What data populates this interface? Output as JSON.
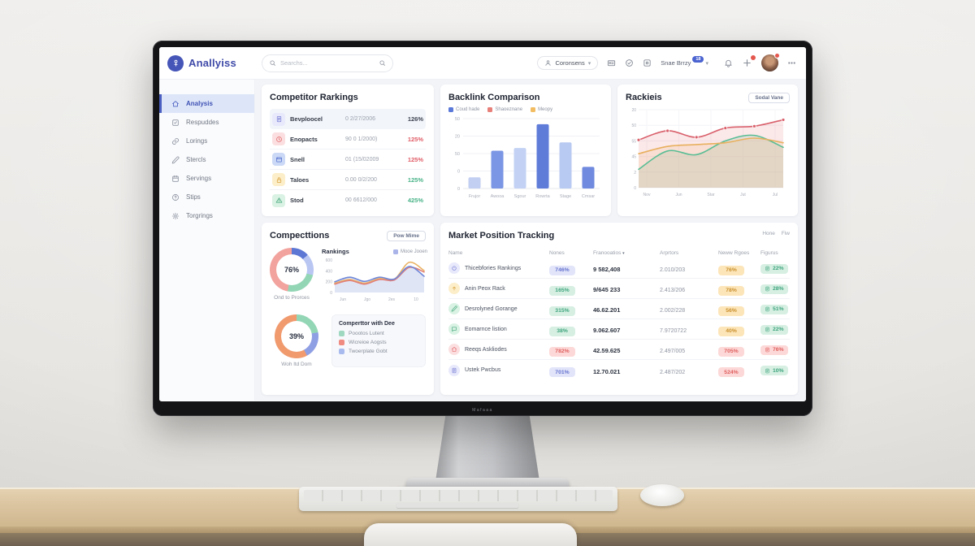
{
  "scene": {
    "monitor_brand": "Mafaaa"
  },
  "header": {
    "logo_text": "Anallyiss",
    "search_placeholder": "Searchs...",
    "consents_label": "Coronsens",
    "user_name": "Snae Brrzy",
    "user_badge": "18"
  },
  "sidebar": {
    "items": [
      {
        "label": "Analysis",
        "icon": "home",
        "active": true
      },
      {
        "label": "Respuddes",
        "icon": "check-square",
        "active": false
      },
      {
        "label": "Lorings",
        "icon": "link",
        "active": false
      },
      {
        "label": "Stercls",
        "icon": "pencil",
        "active": false
      },
      {
        "label": "Servings",
        "icon": "calendar",
        "active": false
      },
      {
        "label": "Stips",
        "icon": "help",
        "active": false
      },
      {
        "label": "Torgrings",
        "icon": "gear",
        "active": false
      }
    ]
  },
  "competitor_rankings": {
    "title": "Competitor Rarkings",
    "rows": [
      {
        "icon": "doc",
        "icon_color": "purple",
        "name": "Bevploocel",
        "value": "0 2/27/2006",
        "pct": "126%",
        "pct_color": "dark"
      },
      {
        "icon": "clock",
        "icon_color": "red",
        "name": "Enopacts",
        "value": "90 0 1/2000)",
        "pct": "125%",
        "pct_color": "red"
      },
      {
        "icon": "window",
        "icon_color": "blue",
        "name": "Snell",
        "value": "01 (15/02009",
        "pct": "125%",
        "pct_color": "red"
      },
      {
        "icon": "lock",
        "icon_color": "yellow",
        "name": "Taloes",
        "value": "0.00 0/2/200",
        "pct": "125%",
        "pct_color": "green"
      },
      {
        "icon": "alert",
        "icon_color": "green",
        "name": "Stod",
        "value": "00 6612/000",
        "pct": "425%",
        "pct_color": "green"
      }
    ]
  },
  "rackieis": {
    "button_label": "Sodal Vane"
  },
  "compecttions": {
    "title": "Compecttions",
    "button_label": "Pow Mime",
    "donut1": {
      "pct": "76%",
      "label": "Ond to Prorces",
      "segments": [
        {
          "color": "#5c77d4",
          "value": 13
        },
        {
          "color": "#b9c6f2",
          "value": 16
        },
        {
          "color": "#93d6b5",
          "value": 24
        },
        {
          "color": "#f2a39e",
          "value": 47
        }
      ]
    },
    "donut2": {
      "pct": "39%",
      "label": "Woh ltd Dom",
      "segments": [
        {
          "color": "#93d6b5",
          "value": 22
        },
        {
          "color": "#8f9fe3",
          "value": 20
        },
        {
          "color": "#f09a6e",
          "value": 58
        }
      ]
    },
    "legend_panel": {
      "title": "Comperttor with Dee",
      "items": [
        {
          "label": "Poootos Lutent",
          "color": "#9fd8c0"
        },
        {
          "label": "Wicreioe Aogsts",
          "color": "#ef8b81"
        },
        {
          "label": "Twoerplate Gobt",
          "color": "#a9bbee"
        }
      ]
    }
  },
  "market": {
    "title": "Market Position Tracking",
    "links": [
      "Hone",
      "Fiw"
    ],
    "columns": [
      {
        "label": "Name",
        "sortable": false
      },
      {
        "label": "Nones",
        "sortable": false
      },
      {
        "label": "Franooatios",
        "sortable": true
      },
      {
        "label": "Arprtors",
        "sortable": false
      },
      {
        "label": "Neww Rgoes",
        "sortable": false
      },
      {
        "label": "Figurus",
        "sortable": false
      }
    ],
    "rows": [
      {
        "icon": "power",
        "icon_color": "purple",
        "name": "Thicebfories Rankings",
        "nones": "746%",
        "nones_color": "purple",
        "franooatios": "9 582,408",
        "arprtors": "2.010/203",
        "neww": "76%",
        "neww_color": "orange",
        "figurus": "22%",
        "figurus_color": "green"
      },
      {
        "icon": "arrow-up",
        "icon_color": "yellow",
        "name": "Anin Peox Rack",
        "nones": "165%",
        "nones_color": "green",
        "franooatios": "9/645 233",
        "arprtors": "2.413/206",
        "neww": "78%",
        "neww_color": "orange",
        "figurus": "28%",
        "figurus_color": "green"
      },
      {
        "icon": "pencil",
        "icon_color": "green",
        "name": "Desrolyned Gorange",
        "nones": "315%",
        "nones_color": "green",
        "franooatios": "46.62.201",
        "arprtors": "2.002/228",
        "neww": "56%",
        "neww_color": "orange",
        "figurus": "51%",
        "figurus_color": "green"
      },
      {
        "icon": "chat",
        "icon_color": "green",
        "name": "Eomarnce listion",
        "nones": "38%",
        "nones_color": "green",
        "franooatios": "9.062.607",
        "arprtors": "7.9720722",
        "neww": "40%",
        "neww_color": "orange",
        "figurus": "22%",
        "figurus_color": "green"
      },
      {
        "icon": "home",
        "icon_color": "red",
        "name": "Reeqs Askliodes",
        "nones": "782%",
        "nones_color": "red",
        "franooatios": "42.59.625",
        "arprtors": "2.497/005",
        "neww": "705%",
        "neww_color": "red",
        "figurus": "76%",
        "figurus_color": "red"
      },
      {
        "icon": "doc",
        "icon_color": "purple",
        "name": "Ustek Pwcbus",
        "nones": "701%",
        "nones_color": "purple",
        "franooatios": "12.70.021",
        "arprtors": "2.487/202",
        "neww": "524%",
        "neww_color": "red",
        "figurus": "10%",
        "figurus_color": "green"
      }
    ]
  },
  "chart_data": [
    {
      "id": "backlink",
      "type": "bar",
      "title": "Backlink Comparison",
      "legend": [
        {
          "label": "Coud hade",
          "color": "#5b79d8"
        },
        {
          "label": "Shaoeznane",
          "color": "#e8807a"
        },
        {
          "label": "Meopy",
          "color": "#f2bd62"
        }
      ],
      "categories": [
        "Frujor",
        "Awooa",
        "Sgour",
        "Rowrta",
        "Stage",
        "Cmsar"
      ],
      "values": [
        16,
        54,
        58,
        92,
        66,
        31
      ],
      "bar_colors": [
        "#c2cff2",
        "#7b96e4",
        "#c3d2f4",
        "#5f7cd9",
        "#b8c9f2",
        "#6f8ade"
      ],
      "y_ticks": [
        "50",
        "20",
        "50",
        "0",
        "0"
      ],
      "xlabel": "",
      "ylabel": "",
      "ylim": [
        0,
        100
      ],
      "grid": true
    },
    {
      "id": "rackieis",
      "type": "line",
      "title": "Rackieis",
      "x": [
        "Nov",
        "Jun",
        "Star",
        "Jut",
        "Jul"
      ],
      "y_ticks": [
        "20",
        "50",
        "55",
        "45",
        "2",
        "0"
      ],
      "ylim": [
        0,
        85
      ],
      "grid": true,
      "series": [
        {
          "name": "red",
          "color": "#d9616c",
          "fill": "rgba(233,128,135,0.18)",
          "dots": true,
          "values": [
            52,
            62,
            55,
            65,
            67,
            74
          ]
        },
        {
          "name": "orange",
          "color": "#e8b05e",
          "fill": "rgba(240,190,110,0.18)",
          "dots": false,
          "values": [
            37,
            45,
            47,
            49,
            54,
            49
          ]
        },
        {
          "name": "green",
          "color": "#58bd94",
          "fill": "rgba(120,200,165,0.22)",
          "dots": false,
          "values": [
            20,
            40,
            36,
            51,
            57,
            44
          ]
        }
      ]
    },
    {
      "id": "rankings",
      "type": "line",
      "title": "Rankings",
      "legend": [
        {
          "label": "Mooe Jooen",
          "color": "#aab4e8"
        }
      ],
      "x": [
        "Jun",
        "Jgo",
        "2es",
        "10"
      ],
      "y_ticks": [
        "600",
        "400",
        "200",
        "0"
      ],
      "ylim": [
        0,
        700
      ],
      "grid": false,
      "series": [
        {
          "name": "blue",
          "color": "#6e87d8",
          "fill": "rgba(130,150,220,0.25)",
          "dots": false,
          "values": [
            230,
            330,
            240,
            330,
            290,
            560,
            350
          ]
        },
        {
          "name": "red",
          "color": "#e07f7a",
          "fill": null,
          "dots": false,
          "values": [
            180,
            260,
            180,
            280,
            270,
            540,
            440
          ]
        },
        {
          "name": "orange",
          "color": "#eab364",
          "fill": null,
          "dots": false,
          "values": [
            200,
            280,
            200,
            300,
            285,
            650,
            470
          ]
        }
      ]
    }
  ]
}
